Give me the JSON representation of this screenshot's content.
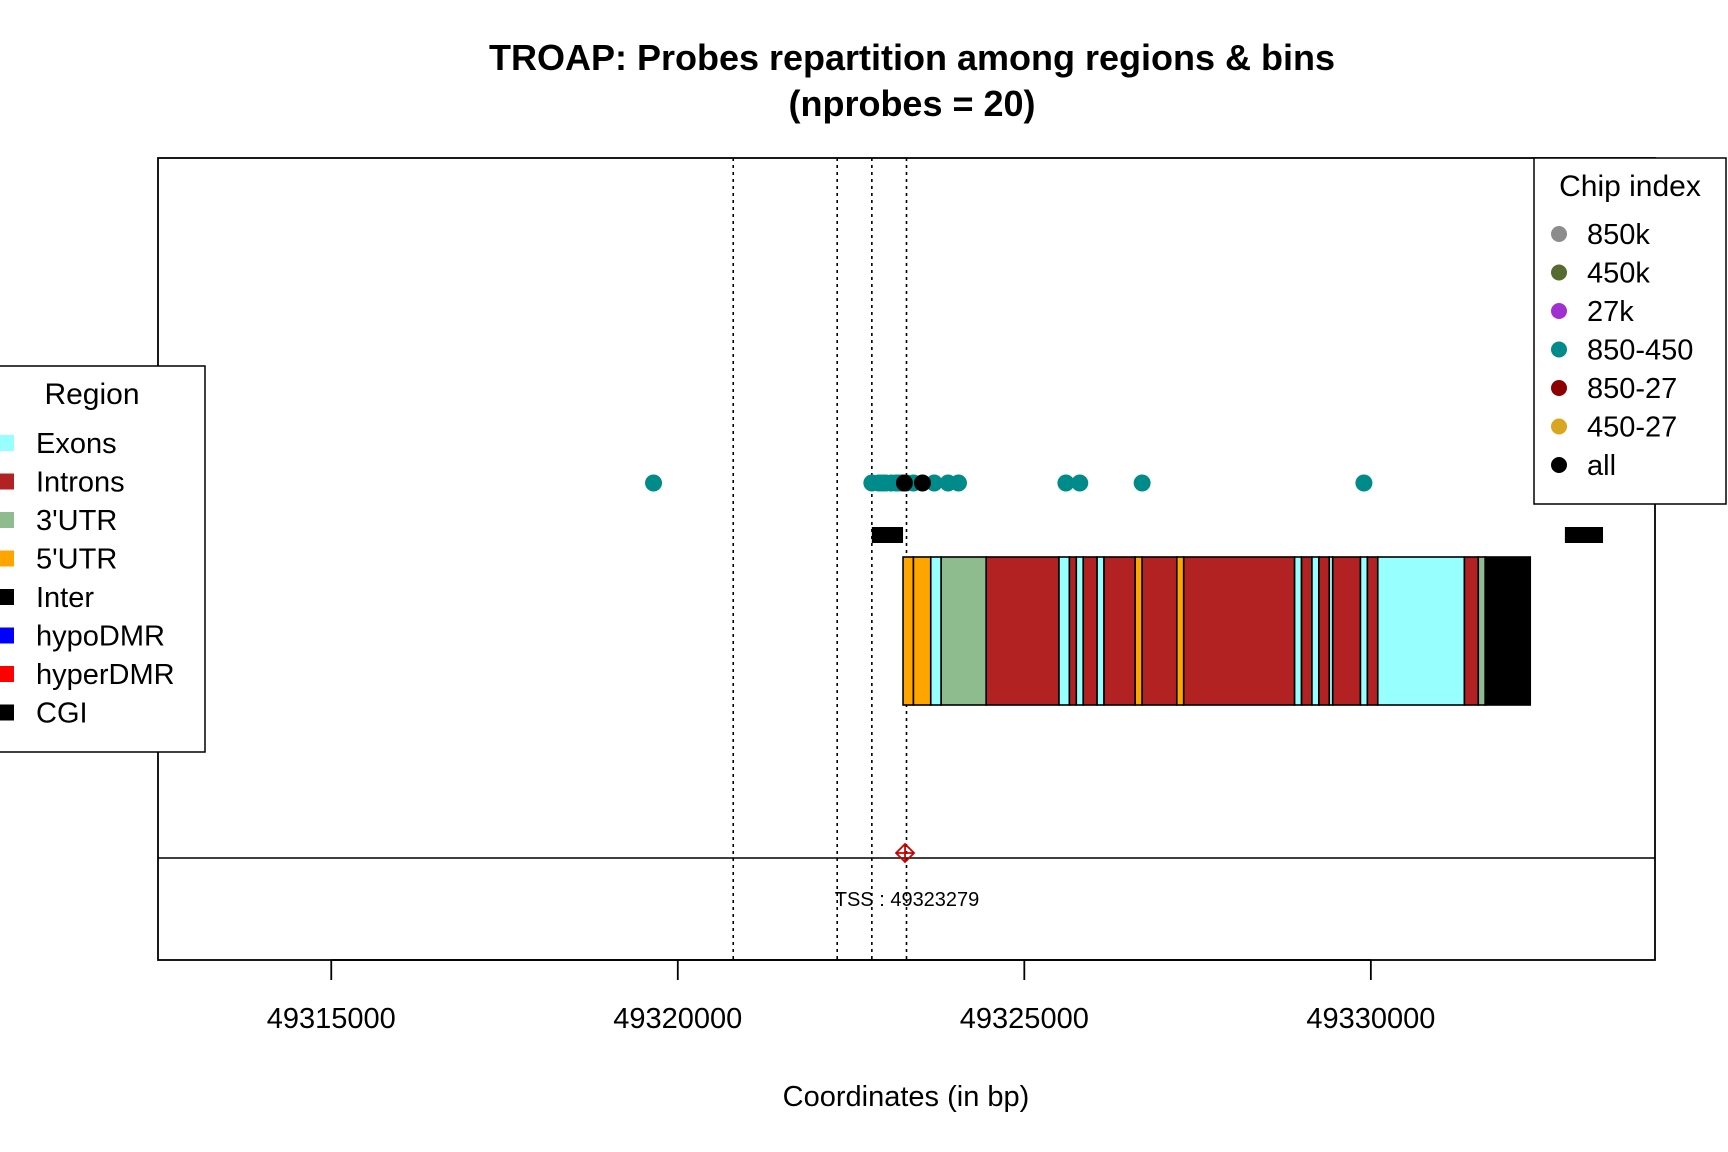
{
  "chart_data": {
    "type": "scatter",
    "title": "TROAP: Probes repartition among regions & bins",
    "subtitle": "(nprobes = 20)",
    "xlabel": "Coordinates (in bp)",
    "ylabel": "",
    "xlim": [
      49312500,
      49334100
    ],
    "x_ticks": [
      49315000,
      49320000,
      49325000,
      49330000
    ],
    "x_tick_labels": [
      "49315000",
      "49320000",
      "49325000",
      "49330000"
    ],
    "bin_boundaries": [
      49320800,
      49322300,
      49322800,
      49323300
    ],
    "tss": {
      "position": 49323279,
      "label": "TSS : 49323279",
      "color": "#CC0000"
    },
    "probes": [
      {
        "x": 49319650,
        "chip": "850-450"
      },
      {
        "x": 49322800,
        "chip": "850-450"
      },
      {
        "x": 49322900,
        "chip": "850-450"
      },
      {
        "x": 49323000,
        "chip": "850-450"
      },
      {
        "x": 49323080,
        "chip": "850-450"
      },
      {
        "x": 49323150,
        "chip": "850-450"
      },
      {
        "x": 49323230,
        "chip": "850-450"
      },
      {
        "x": 49323270,
        "chip": "all"
      },
      {
        "x": 49323300,
        "chip": "850-450"
      },
      {
        "x": 49323400,
        "chip": "850-450"
      },
      {
        "x": 49323530,
        "chip": "all"
      },
      {
        "x": 49323700,
        "chip": "850-450"
      },
      {
        "x": 49323900,
        "chip": "850-450"
      },
      {
        "x": 49324050,
        "chip": "850-450"
      },
      {
        "x": 49325600,
        "chip": "850-450"
      },
      {
        "x": 49325800,
        "chip": "850-450"
      },
      {
        "x": 49326700,
        "chip": "850-450"
      },
      {
        "x": 49329900,
        "chip": "850-450"
      },
      {
        "x": 49323180,
        "chip": "850-450"
      },
      {
        "x": 49322950,
        "chip": "850-450"
      }
    ],
    "cgi": [
      {
        "start": 49322800,
        "end": 49323250
      },
      {
        "start": 49332800,
        "end": 49333350
      }
    ],
    "gene_regions": [
      {
        "start": 49323250,
        "end": 49323400,
        "region": "5'UTR"
      },
      {
        "start": 49323400,
        "end": 49323650,
        "region": "5'UTR"
      },
      {
        "start": 49323650,
        "end": 49323800,
        "region": "Exons"
      },
      {
        "start": 49323800,
        "end": 49324450,
        "region": "3'UTR"
      },
      {
        "start": 49324450,
        "end": 49325500,
        "region": "Introns"
      },
      {
        "start": 49325500,
        "end": 49325650,
        "region": "Exons"
      },
      {
        "start": 49325650,
        "end": 49325750,
        "region": "Introns"
      },
      {
        "start": 49325750,
        "end": 49325850,
        "region": "Exons"
      },
      {
        "start": 49325850,
        "end": 49326050,
        "region": "Introns"
      },
      {
        "start": 49326050,
        "end": 49326150,
        "region": "Exons"
      },
      {
        "start": 49326150,
        "end": 49326600,
        "region": "Introns"
      },
      {
        "start": 49326600,
        "end": 49326700,
        "region": "5'UTR"
      },
      {
        "start": 49326700,
        "end": 49327200,
        "region": "Introns"
      },
      {
        "start": 49327200,
        "end": 49327300,
        "region": "5'UTR"
      },
      {
        "start": 49327300,
        "end": 49328900,
        "region": "Introns"
      },
      {
        "start": 49328900,
        "end": 49329000,
        "region": "Exons"
      },
      {
        "start": 49329000,
        "end": 49329150,
        "region": "Introns"
      },
      {
        "start": 49329150,
        "end": 49329250,
        "region": "Exons"
      },
      {
        "start": 49329250,
        "end": 49329400,
        "region": "Introns"
      },
      {
        "start": 49329400,
        "end": 49329450,
        "region": "Exons"
      },
      {
        "start": 49329450,
        "end": 49329850,
        "region": "Introns"
      },
      {
        "start": 49329850,
        "end": 49329950,
        "region": "Exons"
      },
      {
        "start": 49329950,
        "end": 49330100,
        "region": "Introns"
      },
      {
        "start": 49330100,
        "end": 49331350,
        "region": "Exons"
      },
      {
        "start": 49331350,
        "end": 49331550,
        "region": "Introns"
      },
      {
        "start": 49331550,
        "end": 49331650,
        "region": "3'UTR"
      },
      {
        "start": 49331650,
        "end": 49332300,
        "region": "Inter"
      }
    ],
    "region_legend": {
      "title": "Region",
      "items": [
        {
          "label": "Exons",
          "color": "#98FFFF"
        },
        {
          "label": "Introns",
          "color": "#B22222"
        },
        {
          "label": "3'UTR",
          "color": "#8FBC8F"
        },
        {
          "label": "5'UTR",
          "color": "#FFA500"
        },
        {
          "label": "Inter",
          "color": "#000000"
        },
        {
          "label": "hypoDMR",
          "color": "#0000FF"
        },
        {
          "label": "hyperDMR",
          "color": "#FF0000"
        },
        {
          "label": "CGI",
          "color": "#000000"
        }
      ]
    },
    "chip_legend": {
      "title": "Chip index",
      "items": [
        {
          "label": "850k",
          "color": "#8C8C8C"
        },
        {
          "label": "450k",
          "color": "#556B2F"
        },
        {
          "label": "27k",
          "color": "#A030D0"
        },
        {
          "label": "850-450",
          "color": "#008B8B"
        },
        {
          "label": "850-27",
          "color": "#8B0000"
        },
        {
          "label": "450-27",
          "color": "#DAA520"
        },
        {
          "label": "all",
          "color": "#000000"
        }
      ]
    }
  }
}
